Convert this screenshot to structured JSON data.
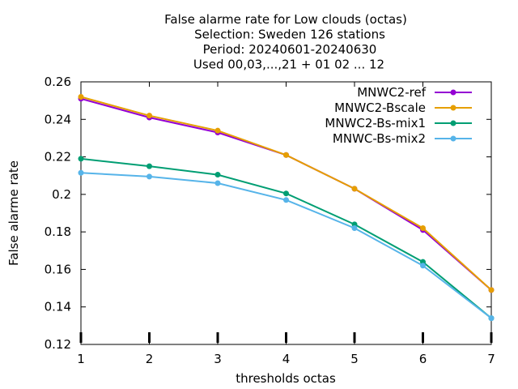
{
  "chart_data": {
    "type": "line",
    "title_lines": [
      "False alarme rate  for Low clouds (octas)",
      "Selection: Sweden    126 stations",
      "Period: 20240601-20240630",
      "Used 00,03,...,21 + 01 02 ... 12"
    ],
    "xlabel": "thresholds octas",
    "ylabel": "False alarme rate",
    "x": [
      1,
      2,
      3,
      4,
      5,
      6,
      7
    ],
    "xlim": [
      1,
      7
    ],
    "ylim": [
      0.12,
      0.26
    ],
    "xticks": [
      "1",
      "2",
      "3",
      "4",
      "5",
      "6",
      "7"
    ],
    "yticks": [
      "0.12",
      "0.14",
      "0.16",
      "0.18",
      "0.2",
      "0.22",
      "0.24",
      "0.26"
    ],
    "grid": false,
    "legend_position": "top-right",
    "series": [
      {
        "name": "MNWC2-ref",
        "color": "#9400d3",
        "values": [
          0.251,
          0.241,
          0.233,
          0.221,
          0.203,
          0.181,
          0.149
        ]
      },
      {
        "name": "MNWC2-Bscale",
        "color": "#e69f00",
        "values": [
          0.252,
          0.242,
          0.234,
          0.221,
          0.203,
          0.182,
          0.149
        ]
      },
      {
        "name": "MNWC2-Bs-mix1",
        "color": "#009e73",
        "values": [
          0.219,
          0.215,
          0.2105,
          0.2005,
          0.184,
          0.164,
          0.134
        ]
      },
      {
        "name": "MNWC-Bs-mix2",
        "color": "#56b4e9",
        "values": [
          0.2115,
          0.2095,
          0.206,
          0.197,
          0.182,
          0.162,
          0.134
        ]
      }
    ]
  }
}
